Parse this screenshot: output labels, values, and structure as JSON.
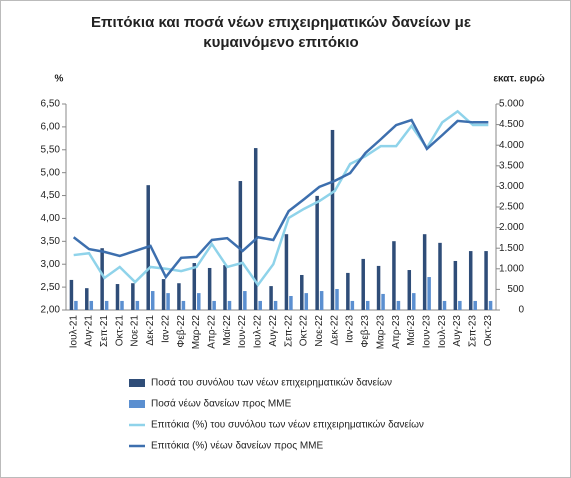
{
  "chart_data": {
    "type": "bar-line",
    "title": "Επιτόκια και ποσά νέων επιχειρηματικών δανείων με κυμαινόμενο επιτόκιο",
    "ylabel": "%",
    "y2label": "εκατ. ευρώ",
    "categories": [
      "Ιουλ-21",
      "Αυγ-21",
      "Σεπ-21",
      "Οκτ-21",
      "Νοε-21",
      "Δεκ-21",
      "Ιαν-22",
      "Φεβ-22",
      "Μαρ-22",
      "Απρ-22",
      "Μαϊ-22",
      "Ιουν-22",
      "Ιουλ-22",
      "Αυγ-22",
      "Σεπ-22",
      "Οκτ-22",
      "Νοε-22",
      "Δεκ-22",
      "Ιαν-23",
      "Φεβ-23",
      "Μαρ-23",
      "Απρ-23",
      "Μαϊ-23",
      "Ιουν-23",
      "Ιουλ-23",
      "Αυγ-23",
      "Σεπ-23",
      "Οκτ-23"
    ],
    "ylim": [
      2,
      6.5
    ],
    "yticks": [
      {
        "value": 2,
        "label": "2,00"
      },
      {
        "value": 2.5,
        "label": "2,50"
      },
      {
        "value": 3,
        "label": "3,00"
      },
      {
        "value": 3.5,
        "label": "3,50"
      },
      {
        "value": 4,
        "label": "4,00"
      },
      {
        "value": 4.5,
        "label": "4,50"
      },
      {
        "value": 5,
        "label": "5,00"
      },
      {
        "value": 5.5,
        "label": "5,50"
      },
      {
        "value": 6,
        "label": "6,00"
      },
      {
        "value": 6.5,
        "label": "6,50"
      }
    ],
    "y2lim": [
      0,
      5000
    ],
    "y2ticks": [
      0,
      500,
      {
        "value": 1000,
        "label": "1.000"
      },
      {
        "value": 1500,
        "label": "1.500"
      },
      {
        "value": 2000,
        "label": "2.000"
      },
      {
        "value": 2500,
        "label": "2.500"
      },
      {
        "value": 3000,
        "label": "3.000"
      },
      {
        "value": 3500,
        "label": "3.500"
      },
      {
        "value": 4000,
        "label": "4.000"
      },
      {
        "value": 4500,
        "label": "4.500"
      },
      {
        "value": 5000,
        "label": "5.000"
      }
    ],
    "series": [
      {
        "name": "Ποσά του συνόλου των νέων επιχειρηματικών δανείων",
        "type": "bar",
        "axis": "y2",
        "color": "#2f4d78",
        "values": [
          730,
          530,
          1500,
          630,
          650,
          3030,
          750,
          650,
          1140,
          1020,
          1090,
          3130,
          3930,
          580,
          1840,
          850,
          2770,
          4370,
          900,
          1240,
          1070,
          1670,
          970,
          1840,
          1630,
          1190,
          1430,
          1430
        ]
      },
      {
        "name": "Ποσά νέων δανείων προς ΜΜΕ",
        "type": "bar",
        "axis": "y2",
        "color": "#5b8fd0",
        "values": [
          220,
          220,
          220,
          220,
          220,
          460,
          410,
          220,
          410,
          220,
          220,
          460,
          220,
          220,
          340,
          410,
          460,
          510,
          220,
          220,
          390,
          220,
          410,
          800,
          220,
          220,
          220,
          220
        ]
      },
      {
        "name": "Επιτόκια (%) του συνόλου των νέων επιχειρηματικών δανείων",
        "type": "line",
        "color": "#8fd3ea",
        "values": [
          3.2,
          3.24,
          2.7,
          2.94,
          2.61,
          2.94,
          2.9,
          2.85,
          2.94,
          3.44,
          2.94,
          3.03,
          2.55,
          3.0,
          4.01,
          4.21,
          4.38,
          4.6,
          5.19,
          5.36,
          5.58,
          5.58,
          6.02,
          5.54,
          6.1,
          6.34,
          6.04,
          6.04
        ]
      },
      {
        "name": "Επιτόκια (%) νέων δανείων προς ΜΜΕ",
        "type": "line",
        "color": "#3d6fae",
        "values": [
          3.59,
          3.33,
          3.27,
          3.18,
          3.29,
          3.4,
          2.72,
          3.14,
          3.16,
          3.53,
          3.57,
          3.29,
          3.59,
          3.53,
          4.16,
          4.42,
          4.69,
          4.82,
          4.99,
          5.43,
          5.73,
          6.04,
          6.15,
          5.52,
          5.82,
          6.13,
          6.1,
          6.1
        ]
      }
    ]
  }
}
